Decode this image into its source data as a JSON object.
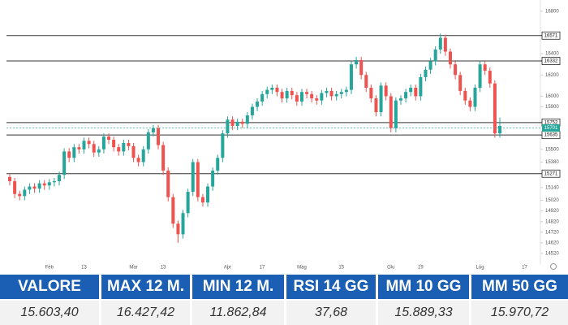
{
  "chart_data": {
    "type": "candlestick",
    "up_color": "#26a69a",
    "down_color": "#ef5350",
    "last_color": "#26a69a",
    "open": [
      15240,
      15200,
      15080,
      15060,
      15120,
      15150,
      15130,
      15180,
      15160,
      15190,
      15200,
      15260,
      15480,
      15420,
      15520,
      15500,
      15580,
      15550,
      15470,
      15500,
      15620,
      15590,
      15520,
      15480,
      15560,
      15530,
      15420,
      15380,
      15500,
      15660,
      15700,
      15540,
      15300,
      15050,
      14800,
      14700,
      14900,
      15100,
      15380,
      15050,
      15000,
      15150,
      15300,
      15420,
      15650,
      15780,
      15720,
      15760,
      15740,
      15820,
      15900,
      15950,
      16020,
      16060,
      16080,
      16040,
      15980,
      16050,
      16010,
      15950,
      16040,
      16020,
      15980,
      15960,
      16030,
      16050,
      16000,
      16020,
      16040,
      16060,
      16300,
      16340,
      16200,
      16080,
      15980,
      15850,
      16100,
      16000,
      15700,
      15960,
      15980,
      16040,
      16080,
      16000,
      16180,
      16250,
      16330,
      16440,
      16550,
      16420,
      16300,
      16200,
      16050,
      15960,
      15900,
      16080,
      16300,
      16240,
      16120,
      15650
    ],
    "high": [
      15270,
      15230,
      15110,
      15150,
      15180,
      15180,
      15210,
      15210,
      15220,
      15230,
      15290,
      15510,
      15510,
      15550,
      15550,
      15610,
      15610,
      15580,
      15530,
      15650,
      15650,
      15620,
      15550,
      15590,
      15590,
      15560,
      15450,
      15530,
      15690,
      15730,
      15730,
      15570,
      15330,
      15080,
      14830,
      14930,
      15130,
      15410,
      15410,
      15080,
      15180,
      15330,
      15450,
      15680,
      15810,
      15810,
      15790,
      15790,
      15850,
      15930,
      15980,
      16050,
      16090,
      16110,
      16110,
      16070,
      16080,
      16080,
      16040,
      16070,
      16070,
      16050,
      16010,
      16060,
      16080,
      16080,
      16050,
      16070,
      16090,
      16330,
      16370,
      16370,
      16230,
      16110,
      16010,
      16130,
      16130,
      16030,
      15990,
      16010,
      16070,
      16110,
      16110,
      16210,
      16280,
      16360,
      16470,
      16590,
      16580,
      16450,
      16330,
      16230,
      16080,
      15990,
      16110,
      16330,
      16330,
      16270,
      16150,
      15800
    ],
    "low": [
      15160,
      15040,
      15020,
      15020,
      15080,
      15090,
      15090,
      15120,
      15120,
      15150,
      15160,
      15220,
      15380,
      15380,
      15460,
      15460,
      15510,
      15430,
      15430,
      15460,
      15550,
      15480,
      15440,
      15440,
      15490,
      15380,
      15340,
      15340,
      15460,
      15620,
      15500,
      15260,
      15010,
      14760,
      14620,
      14660,
      14860,
      15060,
      15010,
      14960,
      14960,
      15110,
      15260,
      15380,
      15610,
      15680,
      15680,
      15700,
      15700,
      15780,
      15860,
      15910,
      15980,
      16020,
      16000,
      15940,
      15940,
      15970,
      15910,
      15910,
      15980,
      15940,
      15920,
      15920,
      15990,
      15960,
      15960,
      15980,
      16000,
      16020,
      16260,
      16160,
      16040,
      15940,
      15810,
      15810,
      15960,
      15660,
      15660,
      15920,
      15940,
      16000,
      15960,
      15960,
      16140,
      16210,
      16290,
      16400,
      16380,
      16260,
      16160,
      16010,
      15920,
      15860,
      15860,
      16040,
      16200,
      16080,
      15610,
      15610
    ],
    "close": [
      15200,
      15080,
      15060,
      15120,
      15150,
      15130,
      15180,
      15160,
      15190,
      15200,
      15260,
      15480,
      15420,
      15520,
      15500,
      15580,
      15550,
      15470,
      15500,
      15620,
      15590,
      15520,
      15480,
      15560,
      15530,
      15420,
      15380,
      15500,
      15660,
      15700,
      15540,
      15300,
      15050,
      14800,
      14700,
      14900,
      15100,
      15380,
      15050,
      15000,
      15150,
      15300,
      15420,
      15650,
      15780,
      15720,
      15760,
      15740,
      15820,
      15900,
      15950,
      16020,
      16060,
      16080,
      16040,
      15980,
      16050,
      16010,
      15950,
      16040,
      16020,
      15980,
      15960,
      16030,
      16050,
      16000,
      16020,
      16040,
      16060,
      16300,
      16340,
      16200,
      16080,
      15980,
      15850,
      16100,
      16000,
      15700,
      15960,
      15980,
      16040,
      16080,
      16000,
      16180,
      16250,
      16330,
      16440,
      16550,
      16420,
      16300,
      16200,
      16050,
      15960,
      15900,
      16080,
      16300,
      16240,
      16120,
      15650,
      15720
    ],
    "levels": [
      16571,
      16332,
      15752,
      15635,
      15271
    ],
    "last_price": 15701,
    "xlim": [
      -1,
      107
    ],
    "xticks": [
      {
        "value": 8,
        "label": "Feb"
      },
      {
        "value": 15,
        "label": "13"
      },
      {
        "value": 25,
        "label": "Mar"
      },
      {
        "value": 31,
        "label": "13"
      },
      {
        "value": 44,
        "label": "Apr"
      },
      {
        "value": 51,
        "label": "17"
      },
      {
        "value": 59,
        "label": "Mag"
      },
      {
        "value": 67,
        "label": "15"
      },
      {
        "value": 77,
        "label": "Giu"
      },
      {
        "value": 83,
        "label": "19"
      },
      {
        "value": 95,
        "label": "Lug"
      },
      {
        "value": 104,
        "label": "17"
      }
    ],
    "ylim": [
      14420,
      16860
    ],
    "yticks": [
      14520,
      14620,
      14720,
      14820,
      14920,
      15020,
      15140,
      15380,
      15500,
      15900,
      16000,
      16200,
      16400,
      16800
    ]
  },
  "table": {
    "headers": [
      "VALORE",
      "MAX 12 M.",
      "MIN 12 M.",
      "RSI 14 GG",
      "MM 10 GG",
      "MM 50 GG"
    ],
    "values": [
      "15.603,40",
      "16.427,42",
      "11.862,84",
      "37,68",
      "15.889,33",
      "15.970,72"
    ]
  }
}
